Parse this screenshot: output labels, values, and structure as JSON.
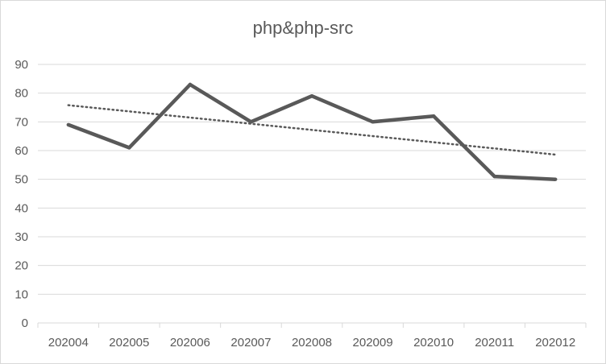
{
  "chart_data": {
    "type": "line",
    "title": "php&php-src",
    "categories": [
      "202004",
      "202005",
      "202006",
      "202007",
      "202008",
      "202009",
      "202010",
      "202011",
      "202012"
    ],
    "series": [
      {
        "values": [
          69,
          61,
          83,
          70,
          79,
          70,
          72,
          51,
          50
        ],
        "color": "#595959",
        "style": "solid"
      }
    ],
    "trendline": {
      "type": "linear",
      "start": 75.8,
      "end": 58.6,
      "color": "#595959",
      "style": "dotted"
    },
    "ylim": [
      0,
      90
    ],
    "yticks": [
      0,
      10,
      20,
      30,
      40,
      50,
      60,
      70,
      80,
      90
    ],
    "grid": true,
    "xlabel": "",
    "ylabel": ""
  }
}
